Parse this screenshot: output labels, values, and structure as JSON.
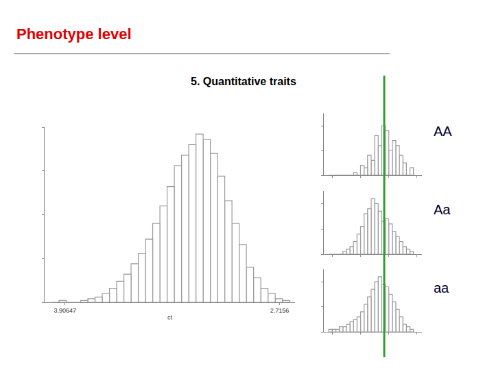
{
  "title": "Phenotype level",
  "chart_data": [
    {
      "type": "histogram",
      "title": "5. Quantitative traits",
      "x_label": "ct",
      "color": "#9a9a9a",
      "bins": [
        2.66,
        2.7,
        2.74,
        2.78,
        2.82,
        2.86,
        2.9,
        2.94,
        2.98,
        3.02,
        3.06,
        3.1,
        3.14,
        3.18,
        3.22,
        3.26,
        3.3,
        3.34,
        3.38,
        3.42,
        3.46,
        3.5,
        3.54,
        3.58,
        3.62,
        3.66,
        3.7,
        3.74,
        3.78,
        3.82,
        3.86,
        3.9,
        3.94,
        3.98
      ],
      "counts": [
        1,
        2,
        5,
        8,
        14,
        20,
        33,
        45,
        58,
        72,
        85,
        93,
        96,
        90,
        84,
        78,
        66,
        55,
        45,
        36,
        28,
        22,
        16,
        12,
        8,
        5,
        3,
        2,
        1,
        0,
        0,
        1,
        0
      ],
      "xlim": [
        4.02,
        2.63
      ],
      "xticks": [
        3.90647,
        2.7156
      ],
      "ylim": [
        0,
        100
      ],
      "yticks": [
        0,
        25,
        50,
        75,
        100
      ],
      "tick_labels": "x",
      "grid": false
    },
    {
      "type": "histogram",
      "title": "AA",
      "color": "#9a9a9a",
      "bins": [
        2.75,
        2.8,
        2.85,
        2.9,
        2.95,
        3.0,
        3.05,
        3.1,
        3.15,
        3.2,
        3.25,
        3.3,
        3.35,
        3.4,
        3.45,
        3.5,
        3.55,
        3.6,
        3.65,
        3.7,
        3.75,
        3.8,
        3.85,
        3.9,
        3.95
      ],
      "counts": [
        3,
        0,
        5,
        8,
        12,
        14,
        10,
        18,
        20,
        12,
        16,
        6,
        8,
        3,
        4,
        0,
        1,
        0,
        0,
        0,
        0,
        0,
        0,
        0
      ],
      "xlim": [
        4.02,
        2.63
      ],
      "xticks": [
        3.9,
        3.5,
        3.1,
        2.7
      ],
      "ylim": [
        0,
        25
      ],
      "yticks": [
        0,
        10,
        20
      ],
      "tick_labels": false,
      "grid": false
    },
    {
      "type": "histogram",
      "title": "Aa",
      "color": "#9a9a9a",
      "bins": [
        2.75,
        2.8,
        2.85,
        2.9,
        2.95,
        3.0,
        3.05,
        3.1,
        3.15,
        3.2,
        3.25,
        3.3,
        3.35,
        3.4,
        3.45,
        3.5,
        3.55,
        3.6,
        3.65,
        3.7,
        3.75,
        3.8,
        3.85,
        3.9,
        3.95
      ],
      "counts": [
        1,
        2,
        3,
        5,
        7,
        9,
        12,
        14,
        13,
        17,
        20,
        22,
        18,
        16,
        11,
        8,
        5,
        3,
        2,
        1,
        0,
        0,
        0,
        0
      ],
      "xlim": [
        4.02,
        2.63
      ],
      "xticks": [
        3.9,
        3.5,
        3.1,
        2.7
      ],
      "ylim": [
        0,
        25
      ],
      "yticks": [
        0,
        10,
        20
      ],
      "tick_labels": false,
      "grid": false
    },
    {
      "type": "histogram",
      "title": "aa",
      "color": "#9a9a9a",
      "bins": [
        2.75,
        2.8,
        2.85,
        2.9,
        2.95,
        3.0,
        3.05,
        3.1,
        3.15,
        3.2,
        3.25,
        3.3,
        3.35,
        3.4,
        3.45,
        3.5,
        3.55,
        3.6,
        3.65,
        3.7,
        3.75,
        3.8,
        3.85,
        3.9,
        3.95
      ],
      "counts": [
        1,
        2,
        3,
        6,
        9,
        12,
        15,
        18,
        19,
        22,
        20,
        17,
        14,
        11,
        8,
        6,
        5,
        4,
        3,
        2,
        2,
        1,
        1,
        1
      ],
      "xlim": [
        4.02,
        2.63
      ],
      "xticks": [
        3.9,
        3.5,
        3.1,
        2.7
      ],
      "ylim": [
        0,
        25
      ],
      "yticks": [
        0,
        10,
        20
      ],
      "tick_labels": false,
      "grid": false
    }
  ]
}
